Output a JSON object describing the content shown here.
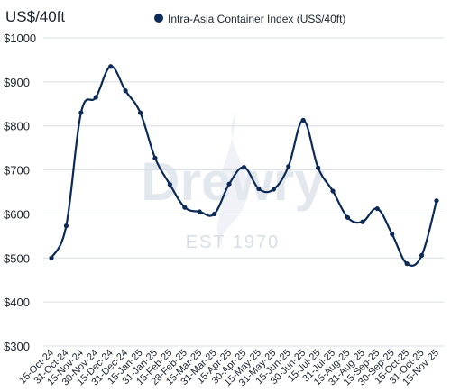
{
  "chart_data": {
    "type": "line",
    "title": "",
    "unit_label": "US$/40ft",
    "xlabel": "",
    "ylabel": "",
    "ylim": [
      300,
      1000
    ],
    "yticks": [
      300,
      400,
      500,
      600,
      700,
      800,
      900,
      1000
    ],
    "ytick_labels": [
      "$300",
      "$400",
      "$500",
      "$600",
      "$700",
      "$800",
      "$900",
      "$1000"
    ],
    "grid": "horizontal",
    "legend_position": "top",
    "watermark": {
      "text": "Drewry",
      "subtext": "EST 1970"
    },
    "xtick_labels": [
      "15-Oct-24",
      "31-Oct-24",
      "15-Nov-24",
      "30-Nov-24",
      "15-Dec-24",
      "31-Dec-24",
      "15-Jan-25",
      "31-Jan-25",
      "15-Feb-25",
      "28-Feb-25",
      "15-Mar-25",
      "31-Mar-25",
      "15-Apr-25",
      "30-Apr-25",
      "15-May-25",
      "31-May-25",
      "15-Jun-25",
      "30-Jun-25",
      "15-Jul-25",
      "31-Jul-25",
      "15-Aug-25",
      "31-Aug-25",
      "15-Sep-25",
      "30-Sep-25",
      "15-Oct-25",
      "31-Oct-25",
      "15-Nov-25"
    ],
    "series": [
      {
        "name": "Intra-Asia Container Index (US$/40ft)",
        "color": "#0b2a55",
        "values": [
          500,
          573,
          830,
          865,
          935,
          880,
          830,
          727,
          667,
          615,
          605,
          600,
          668,
          706,
          657,
          656,
          708,
          813,
          705,
          652,
          592,
          582,
          612,
          554,
          487,
          506,
          630
        ]
      }
    ]
  }
}
